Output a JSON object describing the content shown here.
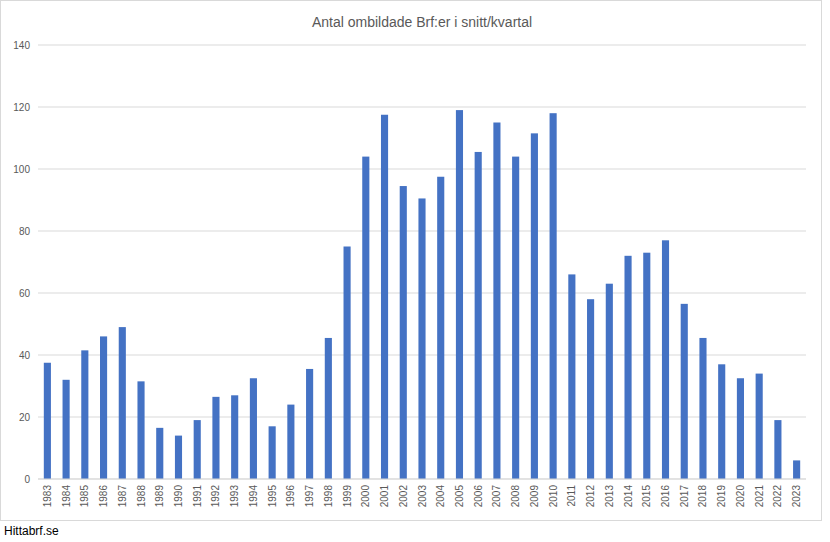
{
  "chart_data": {
    "type": "bar",
    "title": "Antal ombildade Brf:er i snitt/kvartal",
    "source": "Hittabrf.se",
    "categories": [
      "1983",
      "1984",
      "1985",
      "1986",
      "1987",
      "1988",
      "1989",
      "1990",
      "1991",
      "1992",
      "1993",
      "1994",
      "1995",
      "1996",
      "1997",
      "1998",
      "1999",
      "2000",
      "2001",
      "2002",
      "2003",
      "2004",
      "2005",
      "2006",
      "2007",
      "2008",
      "2009",
      "2010",
      "2011",
      "2012",
      "2013",
      "2014",
      "2015",
      "2016",
      "2017",
      "2018",
      "2019",
      "2020",
      "2021",
      "2022",
      "2023"
    ],
    "values": [
      37.5,
      32,
      41.5,
      46,
      49,
      31.5,
      16.5,
      14,
      19,
      26.5,
      27,
      32.5,
      17,
      24,
      35.5,
      45.5,
      75,
      104,
      117.5,
      94.5,
      90.5,
      97.5,
      119,
      105.5,
      115,
      104,
      111.5,
      118,
      66,
      58,
      63,
      72,
      73,
      77,
      56.5,
      45.5,
      37,
      32.5,
      34,
      19,
      6
    ],
    "color": "#4472c4",
    "ylim": [
      0,
      140
    ],
    "yticks": [
      0,
      20,
      40,
      60,
      80,
      100,
      120,
      140
    ],
    "grid": true
  }
}
